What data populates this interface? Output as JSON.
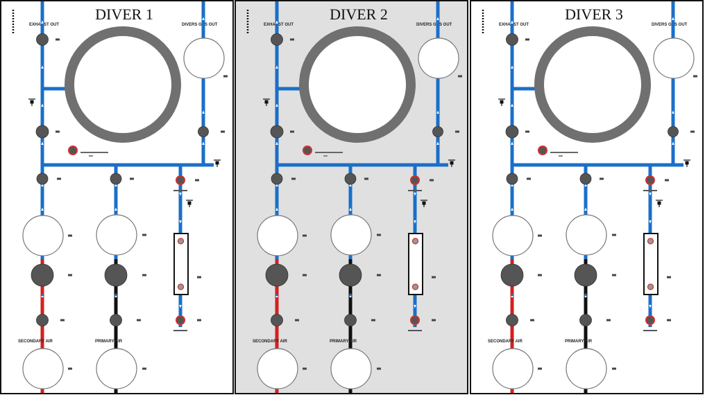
{
  "panels": [
    {
      "title": "DIVER 1",
      "shaded": false
    },
    {
      "title": "DIVER 2",
      "shaded": true
    },
    {
      "title": "DIVER 3",
      "shaded": false
    }
  ],
  "labels": {
    "exhaust_out": "EXHAUST OUT",
    "divers_gas_out": "DIVERS GAS OUT",
    "secondary_air": "SECONDARY AIR",
    "primary_air": "PRIMARY AIR"
  },
  "colors": {
    "pipe_blue": "#1a6fc9",
    "pipe_red": "#d42020",
    "pipe_black": "#111111",
    "valve_gray": "#555555",
    "ring_gray": "#707070",
    "shade": "#e0e0e0",
    "sensor_red": "#cc3333"
  }
}
